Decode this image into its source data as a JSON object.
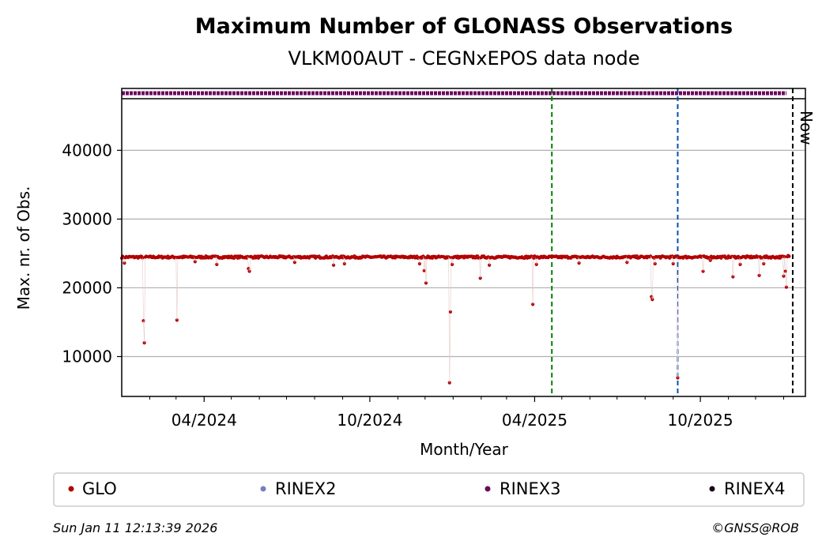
{
  "chart_data": {
    "type": "scatter",
    "title": "Maximum Number of GLONASS Observations",
    "subtitle": "VLKM00AUT - CEGNxEPOS data node",
    "xlabel": "Month/Year",
    "ylabel": "Max. nr. of Obs.",
    "x_ticks": [
      "04/2024",
      "10/2024",
      "04/2025",
      "10/2025"
    ],
    "y_ticks": [
      10000,
      20000,
      30000,
      40000
    ],
    "ylim": [
      4200,
      49000
    ],
    "xlim": [
      "2024-01-01",
      "2026-01-25"
    ],
    "grid": "y",
    "now_label": "Now",
    "legend": {
      "placement": "bottom",
      "entries": [
        {
          "label": "GLO",
          "color": "#b30000"
        },
        {
          "label": "RINEX2",
          "color": "#7b7bc0"
        },
        {
          "label": "RINEX3",
          "color": "#6a0a5e"
        },
        {
          "label": "RINEX4",
          "color": "#1a0519"
        }
      ]
    },
    "vlines": [
      {
        "x": "2025-04-20",
        "color": "#008000"
      },
      {
        "x": "2025-09-06",
        "color": "#0050b3"
      },
      {
        "x": "2026-01-11",
        "color": "#000000"
      }
    ],
    "rinex3_band": {
      "x": [
        "2024-01-01",
        "2026-01-04"
      ],
      "color": "#6a0a5e"
    },
    "series": [
      {
        "name": "GLO",
        "color": "#b30000",
        "baseline": 24500,
        "x_range": [
          "2024-01-01",
          "2026-01-07"
        ],
        "dips": [
          {
            "x": "2024-01-04",
            "y": 23600
          },
          {
            "x": "2024-01-25",
            "y": 15200
          },
          {
            "x": "2024-01-26",
            "y": 12000
          },
          {
            "x": "2024-03-02",
            "y": 15300
          },
          {
            "x": "2024-03-22",
            "y": 23800
          },
          {
            "x": "2024-04-15",
            "y": 23400
          },
          {
            "x": "2024-05-20",
            "y": 22800
          },
          {
            "x": "2024-05-21",
            "y": 22400
          },
          {
            "x": "2024-07-10",
            "y": 23700
          },
          {
            "x": "2024-08-22",
            "y": 23300
          },
          {
            "x": "2024-09-03",
            "y": 23500
          },
          {
            "x": "2024-11-25",
            "y": 23500
          },
          {
            "x": "2024-11-30",
            "y": 22500
          },
          {
            "x": "2024-12-02",
            "y": 20700
          },
          {
            "x": "2024-12-28",
            "y": 6200
          },
          {
            "x": "2024-12-29",
            "y": 16500
          },
          {
            "x": "2024-12-31",
            "y": 23400
          },
          {
            "x": "2025-01-31",
            "y": 21400
          },
          {
            "x": "2025-02-10",
            "y": 23300
          },
          {
            "x": "2025-03-30",
            "y": 17600
          },
          {
            "x": "2025-04-03",
            "y": 23400
          },
          {
            "x": "2025-05-20",
            "y": 23600
          },
          {
            "x": "2025-07-12",
            "y": 23700
          },
          {
            "x": "2025-08-08",
            "y": 18700
          },
          {
            "x": "2025-08-09",
            "y": 18300
          },
          {
            "x": "2025-08-12",
            "y": 23500
          },
          {
            "x": "2025-09-06",
            "y": 6900
          },
          {
            "x": "2025-09-01",
            "y": 23500
          },
          {
            "x": "2025-10-04",
            "y": 22400
          },
          {
            "x": "2025-10-12",
            "y": 24000
          },
          {
            "x": "2025-11-06",
            "y": 21600
          },
          {
            "x": "2025-11-14",
            "y": 23400
          },
          {
            "x": "2025-12-05",
            "y": 21800
          },
          {
            "x": "2025-12-10",
            "y": 23500
          },
          {
            "x": "2026-01-01",
            "y": 21700
          },
          {
            "x": "2026-01-03",
            "y": 22400
          },
          {
            "x": "2026-01-04",
            "y": 20100
          },
          {
            "x": "2026-01-06",
            "y": 24700
          }
        ]
      }
    ]
  },
  "footer": {
    "timestamp": "Sun Jan 11 12:13:39 2026",
    "credit": "©GNSS@ROB"
  }
}
